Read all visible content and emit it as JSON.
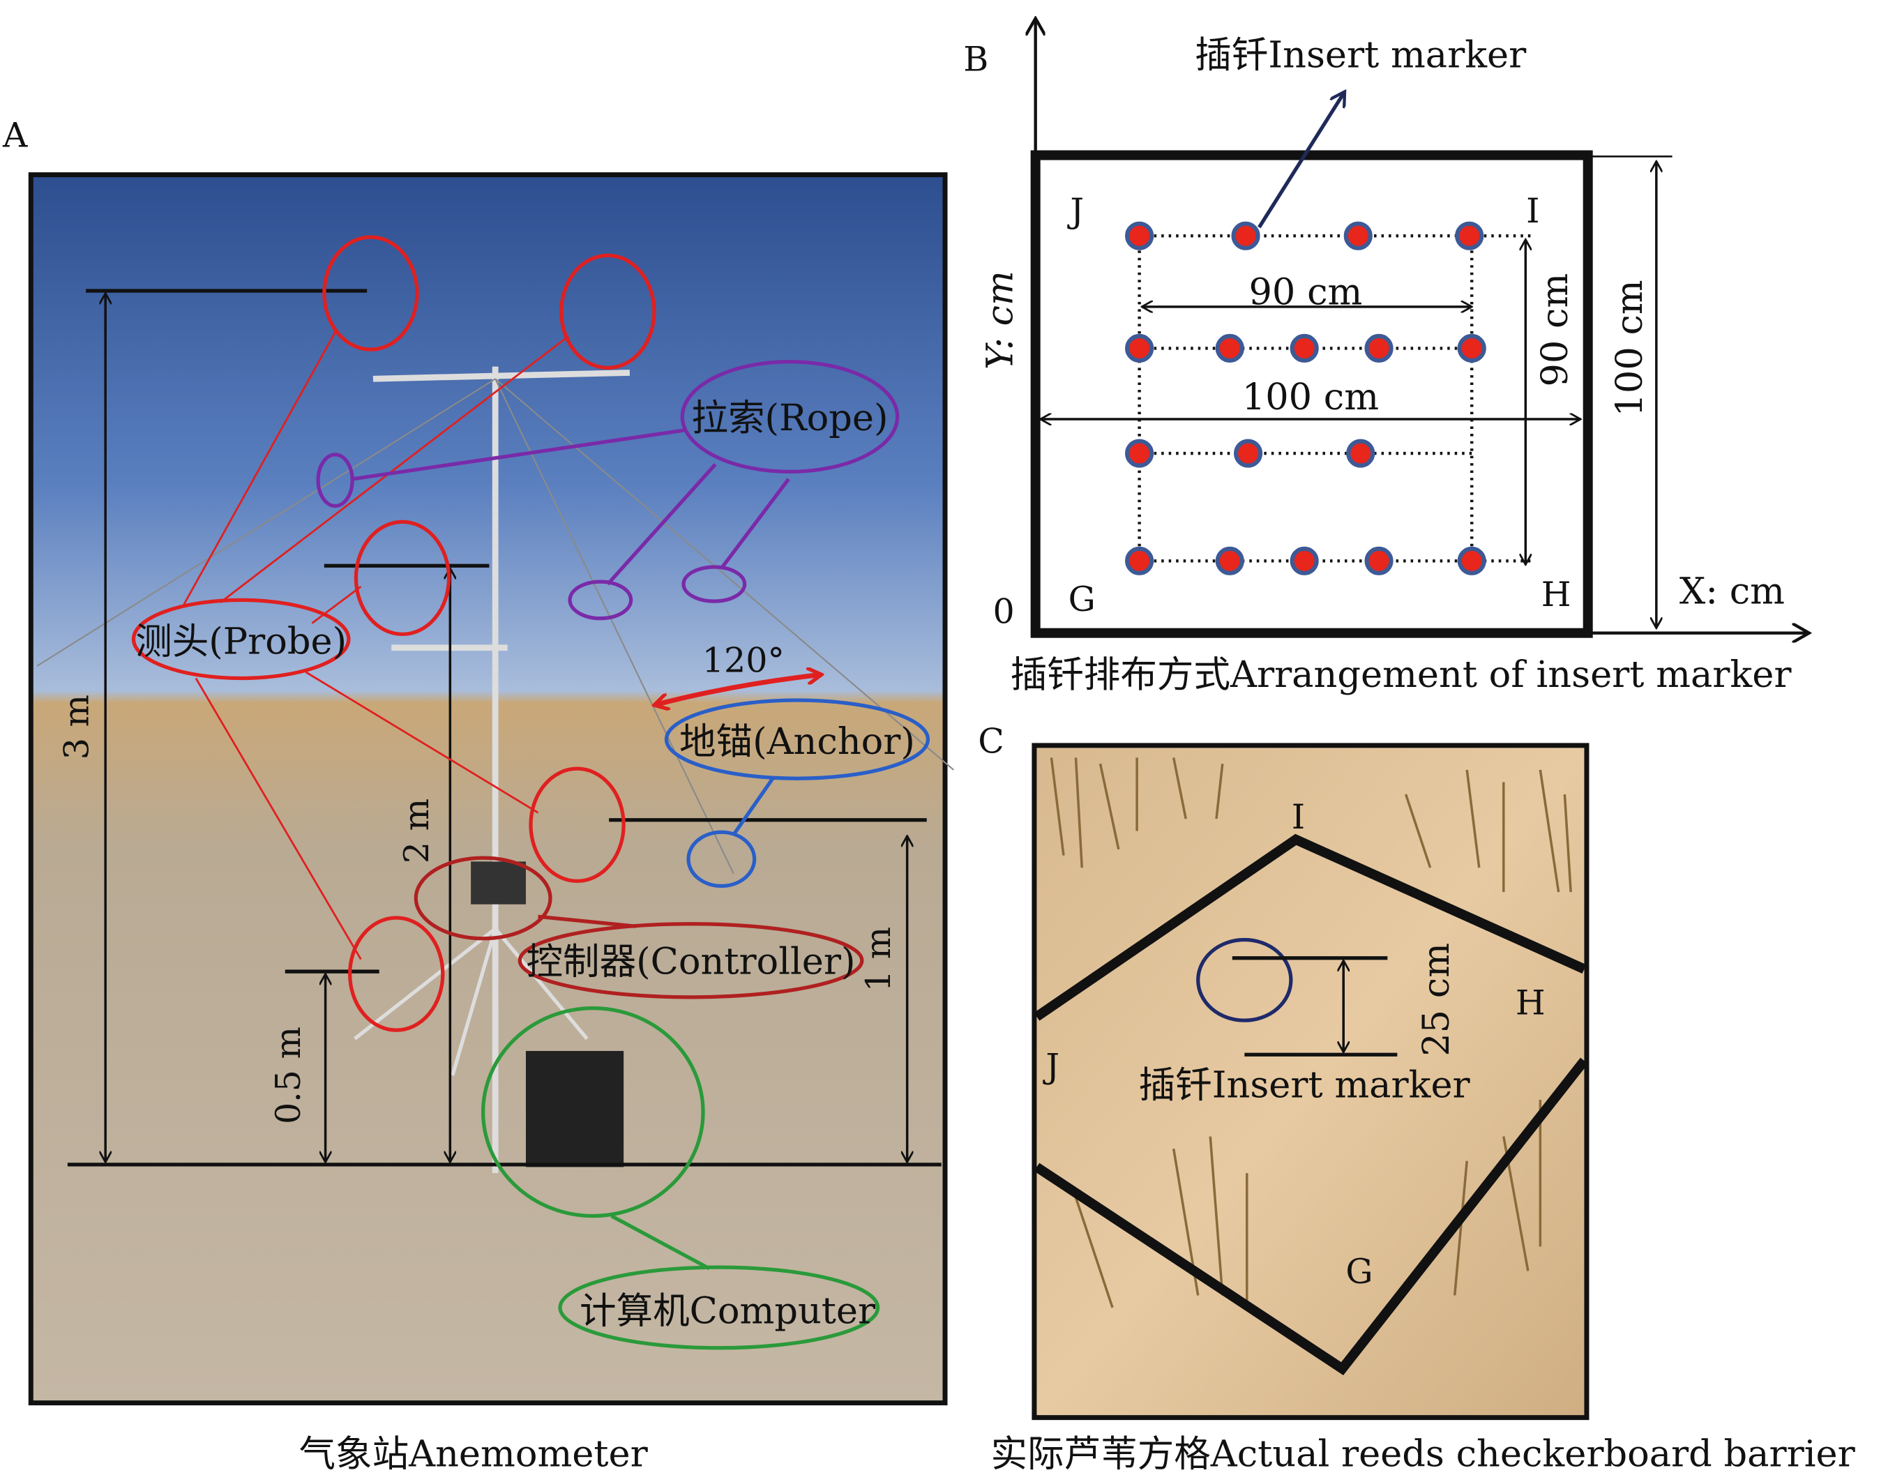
{
  "panels": {
    "a": {
      "letter": "A",
      "caption": "气象站Anemometer",
      "labels": {
        "probe": "测头(Probe)",
        "rope": "拉索(Rope)",
        "anchor": "地锚(Anchor)",
        "controller": "控制器(Controller)",
        "computer": "计算机Computer",
        "angle": "120°",
        "h3": "3 m",
        "h2": "2 m",
        "h1": "1 m",
        "h05": "0.5 m"
      },
      "colors": {
        "probe": "#e02020",
        "rope": "#7a2aa8",
        "anchor": "#2a5fc8",
        "controller": "#b02020",
        "computer": "#2a9a3a"
      }
    },
    "b": {
      "letter": "B",
      "caption": "插钎排布方式Arrangement of insert marker",
      "marker_label": "插钎Insert marker",
      "corners": {
        "j": "J",
        "i": "I",
        "g": "G",
        "h": "H"
      },
      "origin": "0",
      "y_axis": "Y: cm",
      "x_axis": "X: cm",
      "dim_inner_w": "90 cm",
      "dim_inner_h": "90 cm",
      "dim_outer_w": "100 cm",
      "dim_outer_h": "100 cm",
      "marker_rows": [
        4,
        5,
        3,
        5
      ],
      "marker_color": "#e8261c",
      "marker_ring_color": "#3d5a96"
    },
    "c": {
      "letter": "C",
      "caption": "实际芦苇方格Actual reeds checkerboard barrier",
      "marker_label": "插钎Insert marker",
      "depth": "25 cm",
      "corners": {
        "i": "I",
        "h": "H",
        "j": "J",
        "g": "G"
      }
    }
  }
}
